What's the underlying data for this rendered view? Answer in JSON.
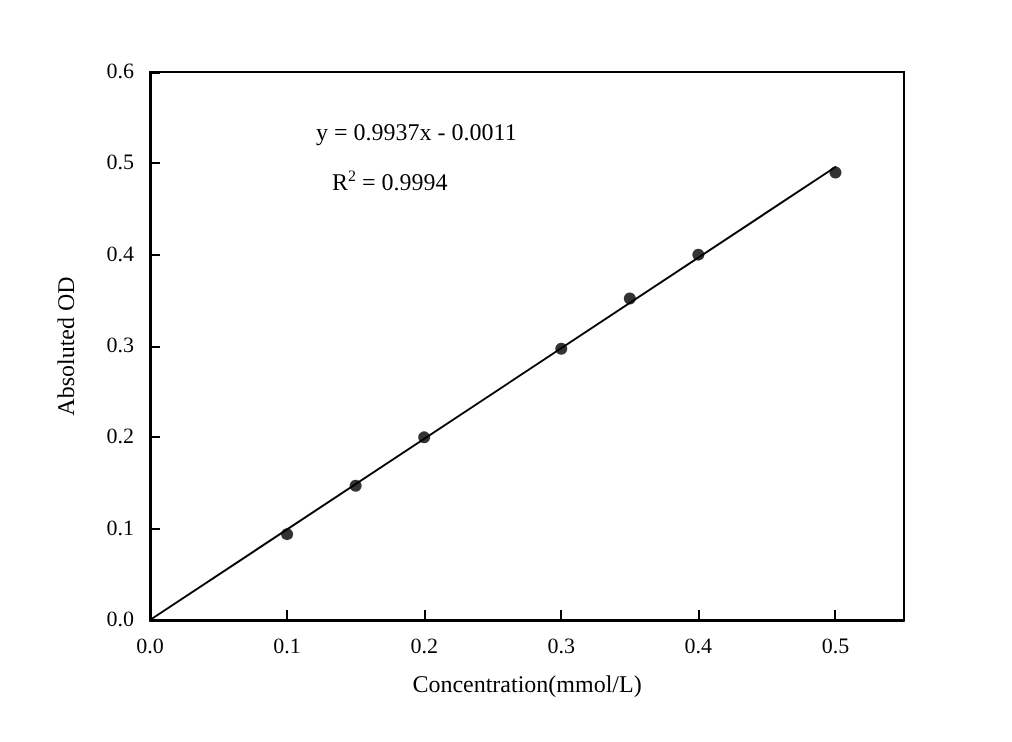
{
  "chart_data": {
    "type": "scatter",
    "xlabel": "Concentration(mmol/L)",
    "ylabel": "Absoluted OD",
    "xlim": [
      0,
      0.55
    ],
    "ylim": [
      0,
      0.6
    ],
    "xticks": [
      {
        "value": 0,
        "label": "0.0"
      },
      {
        "value": 0.1,
        "label": "0.1"
      },
      {
        "value": 0.2,
        "label": "0.2"
      },
      {
        "value": 0.3,
        "label": "0.3"
      },
      {
        "value": 0.4,
        "label": "0.4"
      },
      {
        "value": 0.5,
        "label": "0.5"
      }
    ],
    "yticks": [
      {
        "value": 0,
        "label": "0.0"
      },
      {
        "value": 0.1,
        "label": "0.1"
      },
      {
        "value": 0.2,
        "label": "0.2"
      },
      {
        "value": 0.3,
        "label": "0.3"
      },
      {
        "value": 0.4,
        "label": "0.4"
      },
      {
        "value": 0.5,
        "label": "0.5"
      },
      {
        "value": 0.6,
        "label": "0.6"
      }
    ],
    "series": [
      {
        "color": "#000000",
        "marker": "circle",
        "x": [
          0.1,
          0.15,
          0.2,
          0.3,
          0.35,
          0.4,
          0.5
        ],
        "values": [
          0.094,
          0.147,
          0.2,
          0.297,
          0.352,
          0.4,
          0.49
        ]
      },
      {
        "type": "line",
        "color": "#000000",
        "marker": "none",
        "line_style": "solid",
        "x": [
          0,
          0.5
        ],
        "values": [
          0,
          0.496
        ]
      }
    ],
    "annotations": [
      "y = 0.9937x - 0.0011",
      "R$^{2}$ = 0.9994"
    ],
    "grid": false
  }
}
